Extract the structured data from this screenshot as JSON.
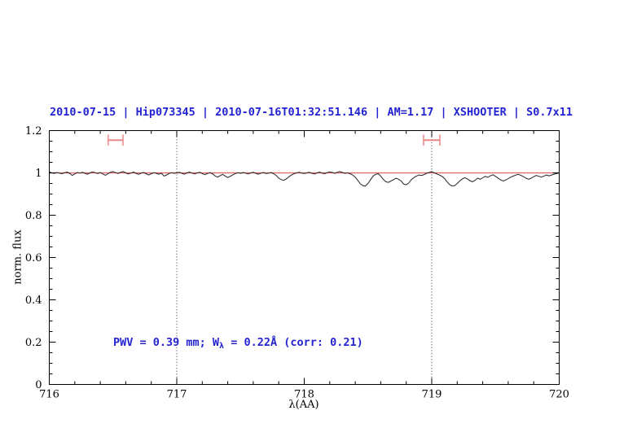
{
  "title": "2010-07-15 | Hip073345 | 2010-07-16T01:32:51.146 | AM=1.17 | XSHOOTER | S0.7x11",
  "annotation": {
    "prefix": "PWV = 0.39 mm; W",
    "subscript": "λ",
    "suffix": " = 0.22Å (corr: 0.21)"
  },
  "colors": {
    "title_blue": "#2323d2",
    "annotation_blue": "#2323d2",
    "continuum_red": "#e06060",
    "marker_pink": "#f2a2a2",
    "marker_pink_dark": "#e68888",
    "spectrum_black": "#222222",
    "axis_black": "#000000",
    "guide_gray": "#3a3a3a"
  },
  "chart_data": {
    "type": "line",
    "title": "2010-07-15 | Hip073345 | 2010-07-16T01:32:51.146 | AM=1.17 | XSHOOTER | S0.7x11",
    "xlabel": "λ(AA)",
    "ylabel": "norm. flux",
    "xlim": [
      716,
      720
    ],
    "ylim": [
      0,
      1.2
    ],
    "grid": false,
    "x_major_ticks": [
      716,
      717,
      718,
      719,
      720
    ],
    "x_tick_labels": [
      "716",
      "717",
      "718",
      "719",
      "720"
    ],
    "x_minor_step": 0.2,
    "y_major_ticks": [
      0,
      0.2,
      0.4,
      0.6,
      0.8,
      1,
      1.2
    ],
    "y_tick_labels": [
      "0",
      "0.2",
      "0.4",
      "0.6",
      "0.8",
      "1",
      "1.2"
    ],
    "y_minor_step": 0.05,
    "dotted_guides_x": [
      717,
      719
    ],
    "continuum_y": 1.0,
    "band_markers": [
      {
        "x_center": 716.52,
        "x_half_width": 0.058,
        "y_center": 1.155,
        "y_half_height": 0.026
      },
      {
        "x_center": 719.0,
        "x_half_width": 0.064,
        "y_center": 1.155,
        "y_half_height": 0.026
      }
    ],
    "series": [
      {
        "name": "observed-spectrum",
        "color": "#222222",
        "x_start": 716.0,
        "x_step": 0.02,
        "values": [
          1.005,
          1.0,
          0.998,
          1.002,
          0.999,
          0.996,
          1.001,
          1.004,
          0.998,
          0.988,
          0.995,
          1.002,
          0.999,
          1.003,
          0.998,
          0.994,
          1.0,
          1.005,
          1.001,
          0.997,
          1.002,
          0.995,
          0.989,
          0.996,
          1.003,
          1.006,
          1.001,
          0.997,
          1.003,
          1.006,
          1.0,
          0.995,
          0.999,
          1.004,
          0.998,
          0.993,
          0.999,
          1.002,
          0.996,
          0.99,
          0.996,
          1.001,
          0.998,
          0.994,
          0.999,
          0.985,
          0.99,
          0.997,
          1.001,
          0.998,
          1.0,
          1.003,
          0.998,
          0.994,
          1.0,
          1.004,
          0.999,
          0.995,
          1.0,
          1.003,
          0.997,
          0.992,
          0.997,
          1.001,
          0.996,
          0.986,
          0.98,
          0.987,
          0.993,
          0.985,
          0.978,
          0.984,
          0.991,
          0.997,
          1.001,
          0.998,
          1.002,
          0.999,
          0.995,
          1.0,
          1.003,
          0.998,
          0.994,
          0.999,
          1.002,
          0.997,
          0.999,
          1.002,
          0.996,
          0.988,
          0.975,
          0.968,
          0.965,
          0.972,
          0.982,
          0.99,
          0.996,
          1.0,
          1.003,
          0.999,
          0.997,
          1.0,
          1.003,
          0.998,
          0.995,
          1.0,
          1.004,
          0.999,
          0.996,
          1.001,
          1.005,
          1.002,
          0.998,
          1.003,
          1.006,
          1.002,
          0.998,
          1.0,
          0.996,
          0.99,
          0.98,
          0.965,
          0.948,
          0.94,
          0.938,
          0.95,
          0.968,
          0.985,
          0.993,
          0.996,
          0.985,
          0.97,
          0.958,
          0.955,
          0.962,
          0.968,
          0.975,
          0.97,
          0.962,
          0.947,
          0.944,
          0.952,
          0.968,
          0.978,
          0.985,
          0.99,
          0.988,
          0.992,
          0.998,
          1.002,
          1.006,
          1.0,
          0.995,
          0.99,
          0.984,
          0.974,
          0.958,
          0.945,
          0.938,
          0.94,
          0.95,
          0.962,
          0.972,
          0.977,
          0.972,
          0.963,
          0.958,
          0.965,
          0.975,
          0.97,
          0.977,
          0.984,
          0.979,
          0.986,
          0.991,
          0.984,
          0.975,
          0.967,
          0.962,
          0.966,
          0.973,
          0.98,
          0.985,
          0.99,
          0.993,
          0.988,
          0.982,
          0.975,
          0.97,
          0.975,
          0.982,
          0.988,
          0.984,
          0.98,
          0.985,
          0.99,
          0.986,
          0.99,
          0.994,
          0.997,
          1.0
        ]
      },
      {
        "name": "continuum-fit",
        "color": "#e06060",
        "x": [
          716,
          720
        ],
        "values": [
          1.0,
          1.0
        ]
      }
    ]
  }
}
